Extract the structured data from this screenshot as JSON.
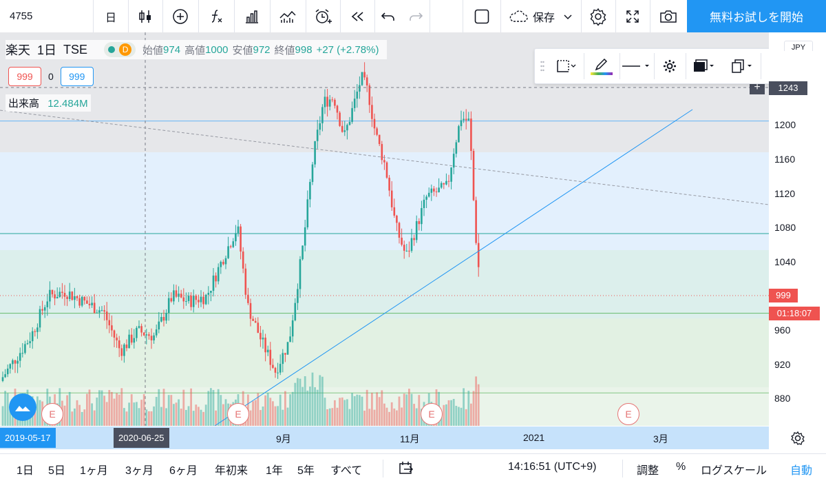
{
  "toolbar": {
    "symbol": "4755",
    "interval": "日",
    "save_label": "保存",
    "trial_label": "無料お試しを開始"
  },
  "legend": {
    "name": "楽天",
    "interval": "1日",
    "exchange": "TSE",
    "badge_letter": "D",
    "open_label": "始値",
    "open": "974",
    "high_label": "高値",
    "high": "1000",
    "low_label": "安値",
    "low": "972",
    "close_label": "終値",
    "close": "998",
    "change": "+27 (+2.78%)"
  },
  "orders": {
    "sell": "999",
    "spread": "0",
    "buy": "999"
  },
  "volume": {
    "label": "出来高",
    "value": "12.484M"
  },
  "price_axis": {
    "ticks": [
      "1200",
      "1160",
      "1120",
      "1080",
      "1040",
      "960",
      "920",
      "880"
    ],
    "crosshair_price": "1243",
    "last_price": "999",
    "countdown": "01:18:07",
    "currency_stub": "JPY"
  },
  "time_axis": {
    "labels": [
      "9月",
      "11月",
      "2021",
      "3月"
    ],
    "crosshair_left": "2019-05-17",
    "crosshair_date": "2020-06-25"
  },
  "earnings_marker": "E",
  "bottombar": {
    "ranges": [
      "1日",
      "5日",
      "1ヶ月",
      "3ヶ月",
      "6ヶ月",
      "年初来",
      "1年",
      "5年",
      "すべて"
    ],
    "time": "14:16:51 (UTC+9)",
    "adjust": "調整",
    "percent": "%",
    "log": "ログスケール",
    "auto": "自動"
  },
  "colors": {
    "up": "#26a69a",
    "down": "#ef5350",
    "accent": "#2196f3",
    "trendline": "#2196f3",
    "zone_blue": "#e3f2fd",
    "zone_green": "#e8f5e9"
  },
  "chart_data": {
    "type": "candlestick",
    "ylim": [
      860,
      1255
    ],
    "candles": [],
    "horizontal_levels": [
      1166,
      1053,
      973,
      893
    ],
    "crosshair_price": 1243,
    "last_price": 999
  }
}
